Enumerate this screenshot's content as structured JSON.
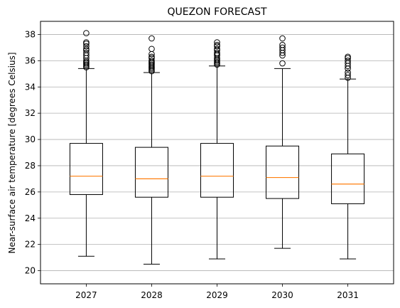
{
  "chart_data": {
    "type": "box",
    "title": "QUEZON FORECAST",
    "xlabel": "",
    "ylabel": "Near-surface air temperature [degrees Celsius]",
    "categories": [
      "2027",
      "2028",
      "2029",
      "2030",
      "2031"
    ],
    "ylim": [
      19.0,
      39.0
    ],
    "yticks": [
      20,
      22,
      24,
      26,
      28,
      30,
      32,
      34,
      36,
      38
    ],
    "grid": "y",
    "median_color": "#ff7f0e",
    "box_color": "#000000",
    "grid_color": "#b0b0b0",
    "boxes": [
      {
        "category": "2027",
        "whisker_low": 21.1,
        "q1": 25.8,
        "median": 27.2,
        "q3": 29.7,
        "whisker_high": 35.4,
        "outliers": [
          35.5,
          35.6,
          35.7,
          35.8,
          35.9,
          36.0,
          36.2,
          36.4,
          36.6,
          36.8,
          36.9,
          37.1,
          37.3,
          37.4,
          38.1
        ]
      },
      {
        "category": "2028",
        "whisker_low": 20.5,
        "q1": 25.6,
        "median": 27.0,
        "q3": 29.4,
        "whisker_high": 35.1,
        "outliers": [
          35.2,
          35.3,
          35.4,
          35.5,
          35.6,
          35.7,
          35.8,
          35.9,
          36.0,
          36.2,
          36.3,
          36.5,
          36.9,
          37.7
        ]
      },
      {
        "category": "2029",
        "whisker_low": 20.9,
        "q1": 25.6,
        "median": 27.2,
        "q3": 29.7,
        "whisker_high": 35.6,
        "outliers": [
          35.7,
          35.8,
          35.9,
          36.0,
          36.1,
          36.2,
          36.4,
          36.5,
          36.6,
          36.8,
          36.9,
          37.1,
          37.2,
          37.4
        ]
      },
      {
        "category": "2030",
        "whisker_low": 21.7,
        "q1": 25.5,
        "median": 27.1,
        "q3": 29.5,
        "whisker_high": 35.4,
        "outliers": [
          35.8,
          36.4,
          36.6,
          36.8,
          37.0,
          37.2,
          37.7
        ]
      },
      {
        "category": "2031",
        "whisker_low": 20.9,
        "q1": 25.1,
        "median": 26.6,
        "q3": 28.9,
        "whisker_high": 34.6,
        "outliers": [
          34.7,
          34.9,
          35.1,
          35.4,
          35.6,
          35.8,
          36.0,
          36.2,
          36.3
        ]
      }
    ]
  }
}
